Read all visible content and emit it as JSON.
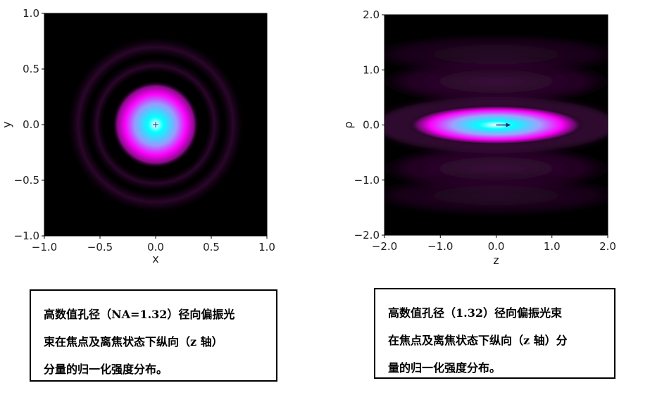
{
  "chart_data": [
    {
      "type": "heatmap",
      "title": "",
      "xlabel": "x",
      "ylabel": "y",
      "xlim": [
        -1.0,
        1.0
      ],
      "ylim": [
        -1.0,
        1.0
      ],
      "xticks": [
        "−1.0",
        "−0.5",
        "0.0",
        "0.5",
        "1.0"
      ],
      "yticks": [
        "1.0",
        "0.5",
        "0.0",
        "−0.5",
        "−1.0"
      ],
      "xtick_values": [
        -1.0,
        -0.5,
        0.0,
        0.5,
        1.0
      ],
      "ytick_values": [
        1.0,
        0.5,
        0.0,
        -0.5,
        -1.0
      ],
      "colormap": [
        "#000000",
        "#3a0a3a",
        "#ff00ff",
        "#00ffff",
        "#ffffff"
      ],
      "center_marker": "+",
      "caption": [
        "高数值孔径（NA=1.32）径向偏振光",
        "束在焦点及离焦状态下纵向（z 轴）",
        "分量的归一化强度分布。"
      ]
    },
    {
      "type": "heatmap",
      "title": "",
      "xlabel": "z",
      "ylabel": "ρ",
      "xlim": [
        -2.0,
        2.0
      ],
      "ylim": [
        -2.0,
        2.0
      ],
      "xticks": [
        "−2.0",
        "−1.0",
        "0.0",
        "1.0",
        "2.0"
      ],
      "yticks": [
        "2.0",
        "1.0",
        "0.0",
        "−1.0",
        "−2.0"
      ],
      "xtick_values": [
        -2.0,
        -1.0,
        0.0,
        1.0,
        2.0
      ],
      "ytick_values": [
        2.0,
        1.0,
        0.0,
        -1.0,
        -2.0
      ],
      "colormap": [
        "#000000",
        "#3a0a3a",
        "#ff00ff",
        "#00ffff",
        "#ffffff"
      ],
      "center_marker": "→",
      "caption": [
        "高数值孔径（1.32）径向偏振光束",
        "在焦点及离焦状态下纵向（z 轴）分",
        "量的归一化强度分布。"
      ]
    }
  ]
}
